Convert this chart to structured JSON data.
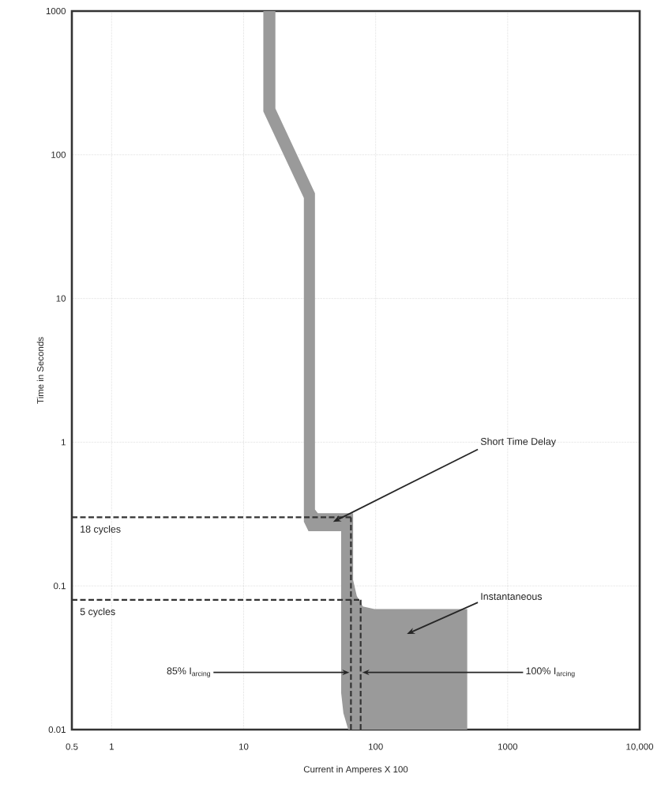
{
  "chart_data": {
    "type": "area",
    "xlabel": "Current in Amperes X 100",
    "ylabel": "Time in Seconds",
    "log": "xy",
    "grid": true,
    "xlim": [
      0.5,
      10000
    ],
    "ylim": [
      0.01,
      1000
    ],
    "xticks": [
      0.5,
      1,
      10,
      100,
      1000,
      {
        "value": 10000,
        "label": "10,000"
      }
    ],
    "yticks": [
      0.01,
      0.1,
      1,
      10,
      100,
      1000
    ],
    "series": [
      {
        "color": "#9a9a9a",
        "x": [
          14.1,
          17.4,
          17.4,
          34.7,
          34.7,
          36.5,
          67.5,
          67.5,
          72,
          80,
          98,
          494,
          494,
          62,
          57,
          54.8,
          54.8,
          31,
          28.6,
          28.6,
          14.1
        ],
        "values": [
          1000,
          1000,
          210,
          54,
          0.34,
          0.32,
          0.32,
          0.11,
          0.085,
          0.072,
          0.069,
          0.069,
          0.01,
          0.01,
          0.013,
          0.018,
          0.24,
          0.24,
          0.28,
          50,
          200
        ]
      }
    ],
    "ref_lines": [
      {
        "axis": "y",
        "value": 0.3,
        "label": "18 cycles",
        "line_style": "dashed",
        "color": "#333333"
      },
      {
        "axis": "y",
        "value": 0.08,
        "label": "5 cycles",
        "line_style": "dashed",
        "color": "#333333"
      },
      {
        "axis": "x",
        "value": 65,
        "label": "85% I$_{arcing}$",
        "line_style": "dashed",
        "color": "#333333"
      },
      {
        "axis": "x",
        "value": 77,
        "label": "100% I$_{arcing}$",
        "line_style": "dashed",
        "color": "#333333"
      }
    ],
    "annotations": [
      "Short Time Delay",
      "Instantaneous"
    ]
  }
}
